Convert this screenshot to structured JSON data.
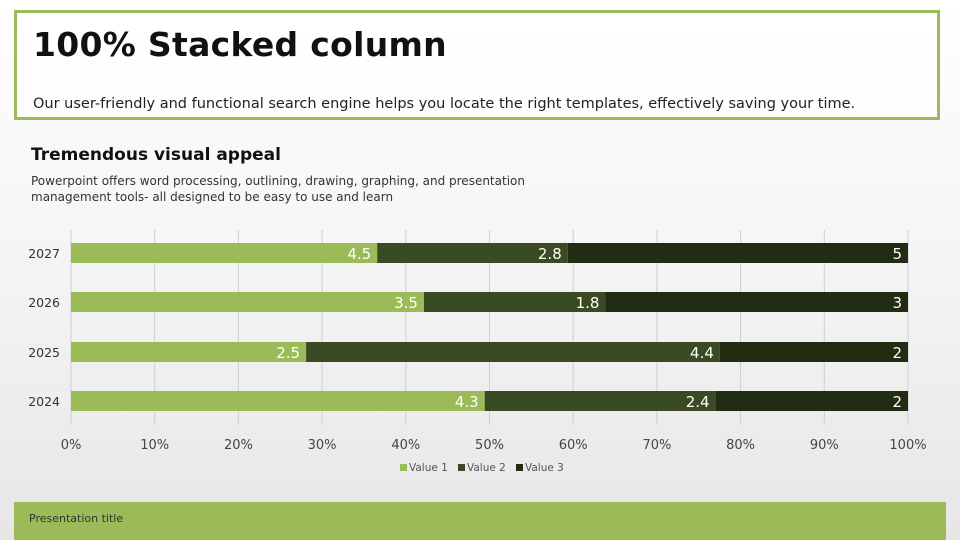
{
  "slide": {
    "title": "100% Stacked column",
    "description": "Our user-friendly and functional search engine helps you locate the right templates, effectively saving your time.",
    "section_heading": "Tremendous visual appeal",
    "section_text": "Powerpoint offers word processing, outlining, drawing, graphing, and presentation management tools- all designed to be easy to use and learn",
    "footer": "Presentation title"
  },
  "colors": {
    "accent": "#9bbb59",
    "value1": "#9bbb59",
    "value2": "#3a4a22",
    "value3": "#222c13"
  },
  "chart_data": {
    "type": "bar",
    "orientation": "horizontal",
    "stacking": "percent",
    "categories": [
      "2024",
      "2025",
      "2026",
      "2027"
    ],
    "series": [
      {
        "name": "Value  1",
        "values": [
          4.3,
          2.5,
          3.5,
          4.5
        ]
      },
      {
        "name": "Value  2",
        "values": [
          2.4,
          4.4,
          1.8,
          2.8
        ]
      },
      {
        "name": "Value  3",
        "values": [
          2,
          2,
          3,
          5
        ]
      }
    ],
    "x_ticks": [
      "0%",
      "10%",
      "20%",
      "30%",
      "40%",
      "50%",
      "60%",
      "70%",
      "80%",
      "90%",
      "100%"
    ],
    "xlim": [
      0,
      100
    ],
    "grid": true,
    "legend": "bottom"
  }
}
